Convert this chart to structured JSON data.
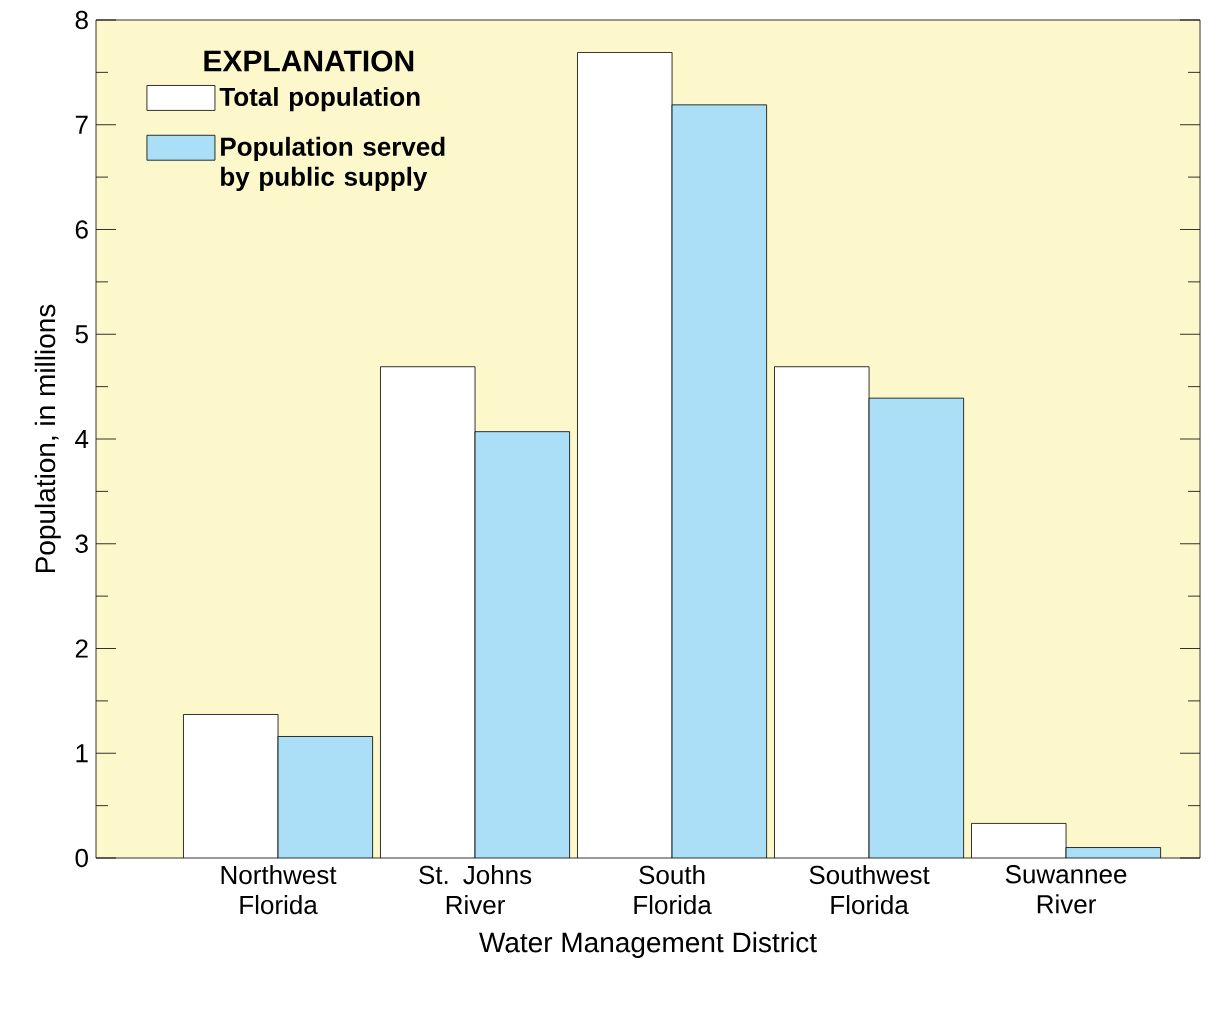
{
  "chart_data": {
    "type": "bar",
    "xlabel": "Water Management District",
    "ylabel": "Population, in millions",
    "legend_title": "EXPLANATION",
    "categories": [
      "Northwest Florida",
      "St. Johns River",
      "South Florida",
      "Southwest Florida",
      "Suwannee River"
    ],
    "series": [
      {
        "name": "Total population",
        "color": "#ffffff",
        "values": [
          1.37,
          4.69,
          7.69,
          4.69,
          0.33
        ]
      },
      {
        "name": "Population served by public supply",
        "color": "#abdff7",
        "values": [
          1.16,
          4.07,
          7.19,
          4.39,
          0.1
        ]
      }
    ],
    "ylim": [
      0,
      8
    ],
    "yticks": [
      0,
      1,
      2,
      3,
      4,
      5,
      6,
      7,
      8
    ],
    "legend": "top left"
  }
}
